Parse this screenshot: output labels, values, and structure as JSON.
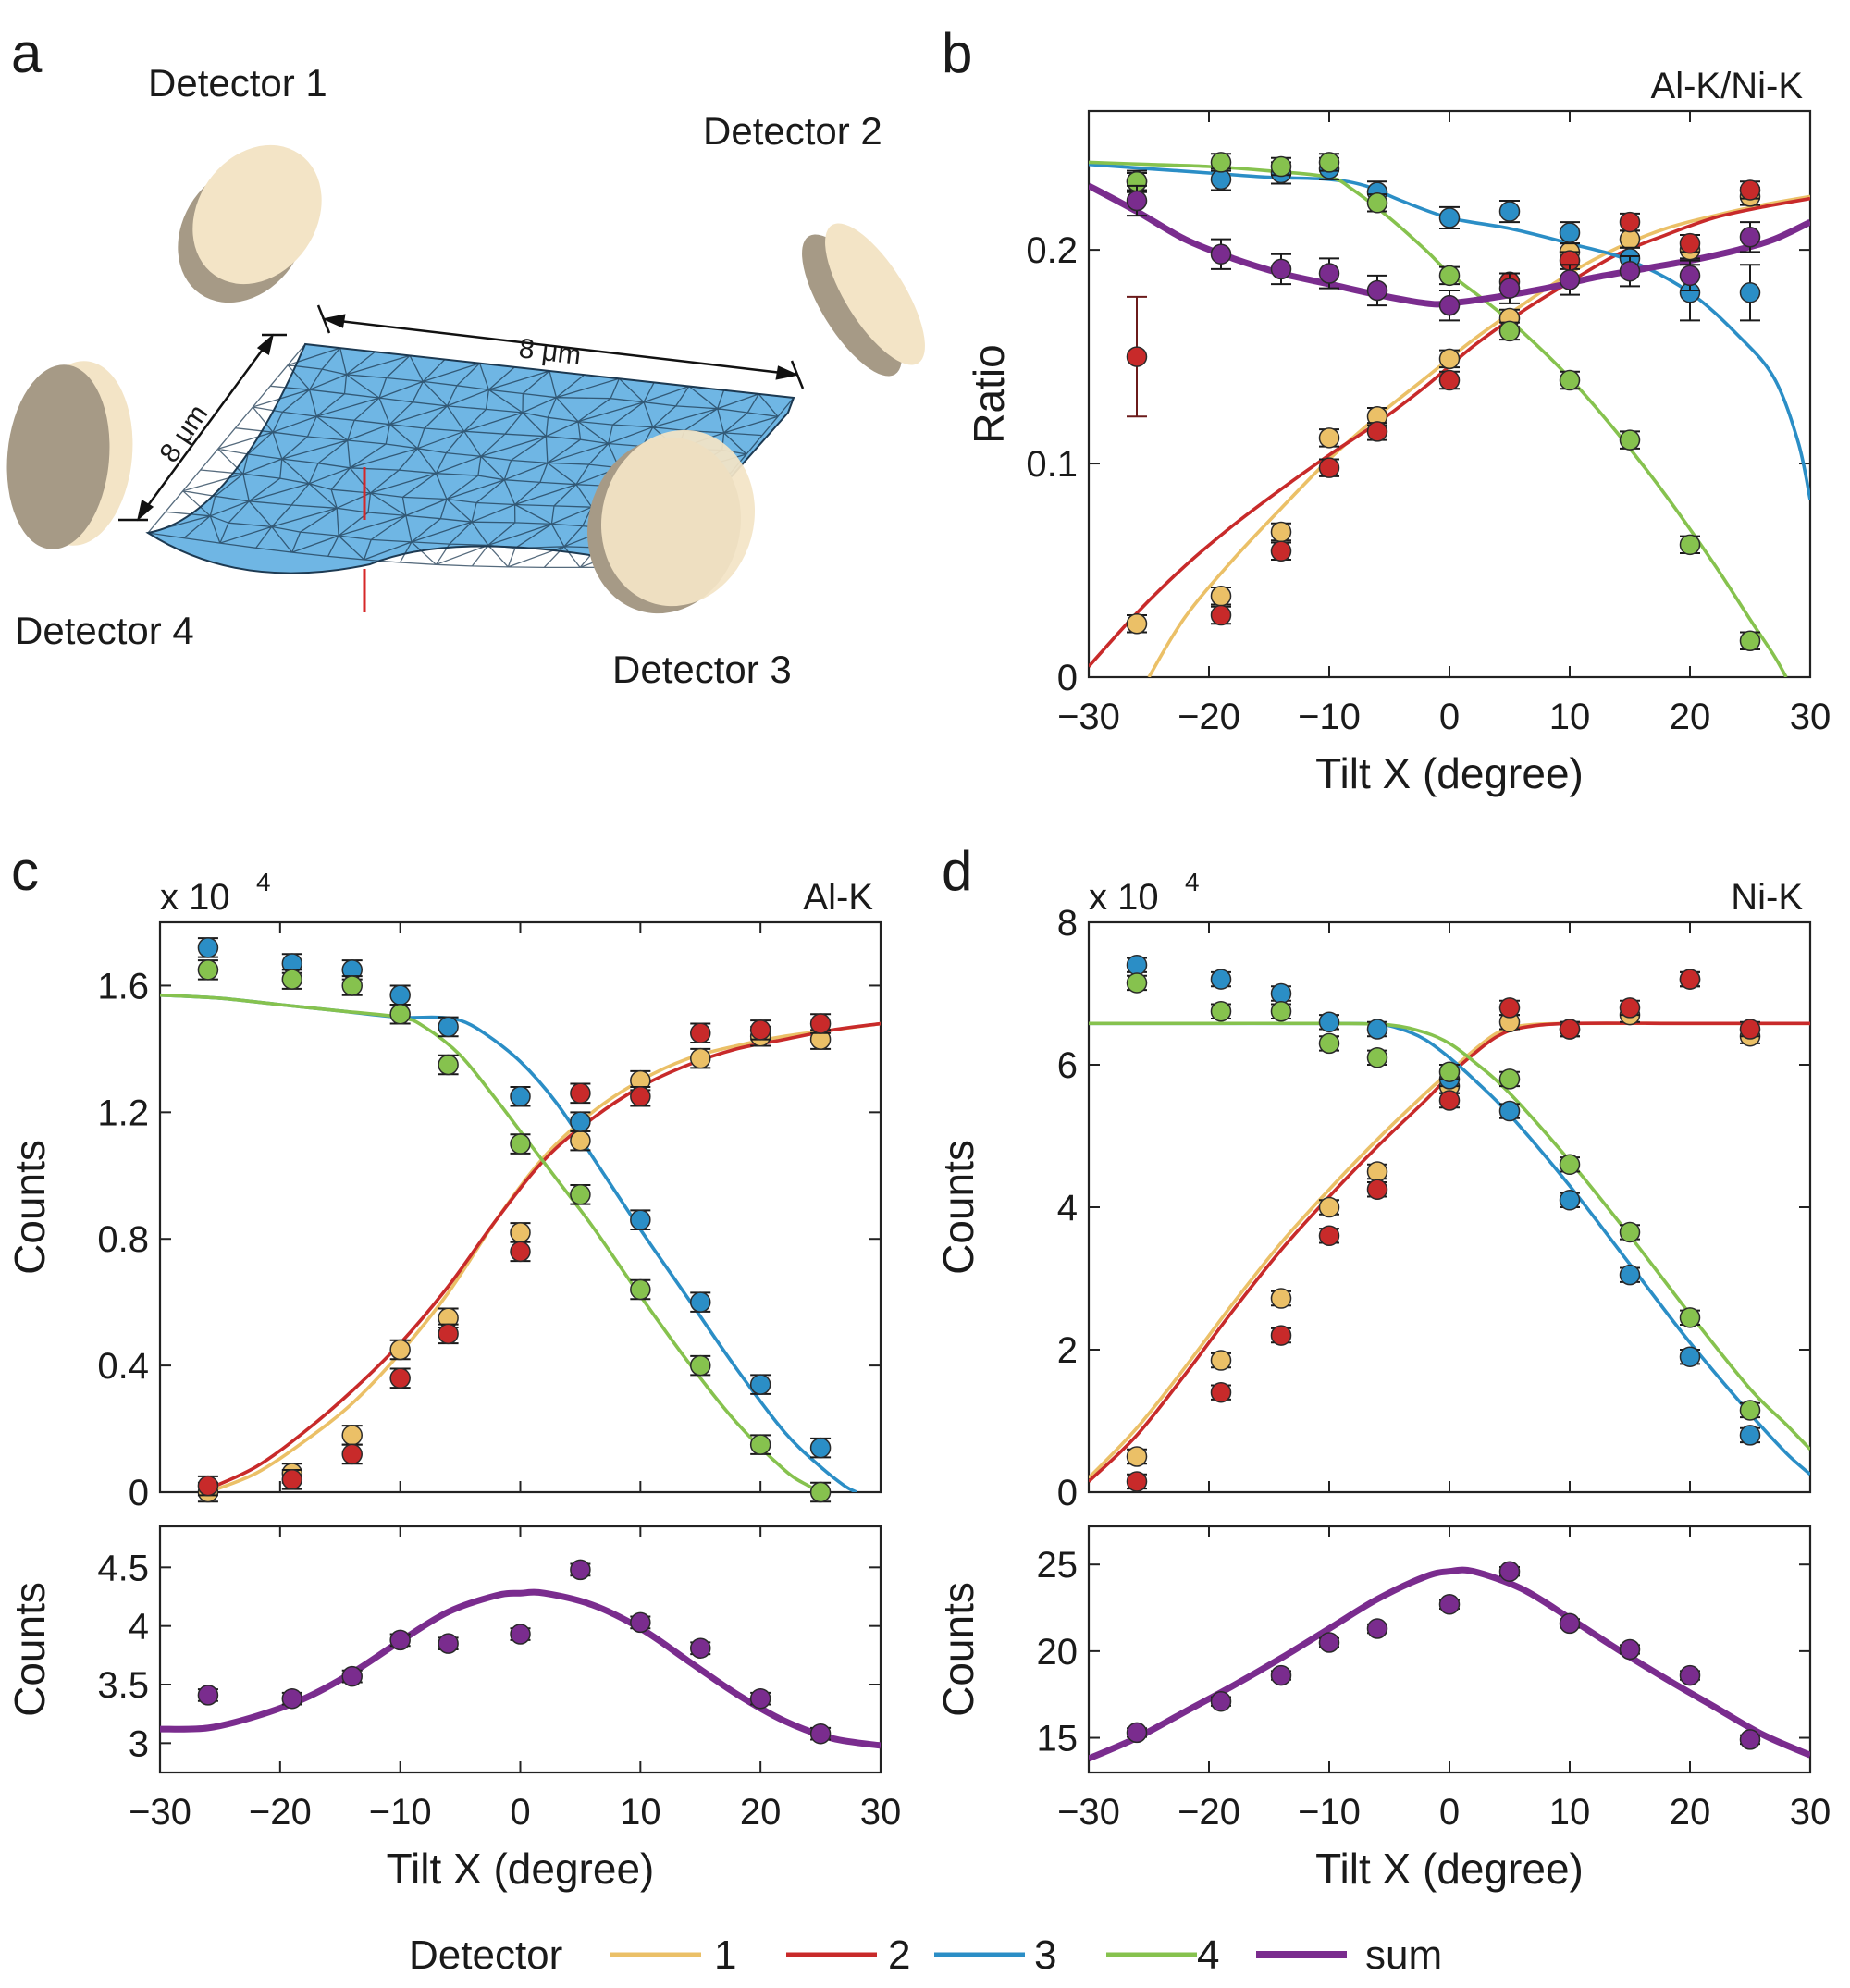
{
  "panel_a": {
    "letter": "a",
    "detector_labels": [
      "Detector 1",
      "Detector 2",
      "Detector 3",
      "Detector 4"
    ],
    "dimension_labels": [
      "8 μm",
      "8 μm"
    ],
    "colors": {
      "mesh": "#6FB6E4",
      "mesh_line": "#1d3a52",
      "disc_face": "#F3E4C6",
      "disc_side": "#A69A86",
      "marker": "#D62728"
    }
  },
  "series_colors": {
    "1": "#EBC067",
    "2": "#C82A2A",
    "3": "#2B8EC6",
    "4": "#86C24E",
    "sum": "#7A2C8E"
  },
  "legend": {
    "title": "Detector",
    "entries": [
      "1",
      "2",
      "3",
      "4",
      "sum"
    ]
  },
  "chart_data": [
    {
      "id": "b",
      "letter": "b",
      "type": "scatter",
      "title": "Al-K/Ni-K",
      "xlabel": "Tilt X (degree)",
      "ylabel": "Ratio",
      "xlim": [
        -30,
        30
      ],
      "ylim": [
        0,
        0.265
      ],
      "xticks": [
        -30,
        -20,
        -10,
        0,
        10,
        20,
        30
      ],
      "xtick_labels": [
        "−30",
        "−20",
        "−10",
        "0",
        "10",
        "20",
        "30"
      ],
      "yticks": [
        0,
        0.1,
        0.2
      ],
      "ytick_labels": [
        "0",
        "0.1",
        "0.2"
      ],
      "x": [
        -26,
        -19,
        -14,
        -10,
        -6,
        0,
        5,
        10,
        15,
        20,
        25
      ],
      "series": [
        {
          "name": "1",
          "values": [
            0.025,
            0.038,
            0.068,
            0.112,
            0.122,
            0.149,
            0.168,
            0.199,
            0.205,
            0.2,
            0.225
          ],
          "err": 0.004
        },
        {
          "name": "2",
          "values": [
            0.15,
            0.029,
            0.059,
            0.098,
            0.115,
            0.139,
            0.185,
            0.195,
            0.213,
            0.203,
            0.228
          ],
          "err": 0.004,
          "extra_err": {
            "index": 0,
            "value": 0.028
          }
        },
        {
          "name": "3",
          "values": [
            0.232,
            0.233,
            0.236,
            0.238,
            0.227,
            0.215,
            0.218,
            0.208,
            0.196,
            0.18,
            0.18
          ],
          "err": 0.005,
          "large_err_from": 9,
          "large_err": 0.013
        },
        {
          "name": "4",
          "values": [
            0.232,
            0.241,
            0.239,
            0.241,
            0.222,
            0.188,
            0.162,
            0.139,
            0.111,
            0.062,
            0.017
          ],
          "err": 0.004
        },
        {
          "name": "sum",
          "values": [
            0.223,
            0.198,
            0.191,
            0.189,
            0.181,
            0.174,
            0.182,
            0.186,
            0.19,
            0.188,
            0.206
          ],
          "err": 0.007
        }
      ],
      "curves": [
        {
          "name": "1",
          "x": [
            -25,
            -22,
            -18,
            -14,
            -10,
            -6,
            -2,
            2,
            6,
            10,
            14,
            18,
            22,
            26,
            30
          ],
          "y": [
            0,
            0.028,
            0.055,
            0.079,
            0.102,
            0.122,
            0.14,
            0.158,
            0.174,
            0.189,
            0.201,
            0.21,
            0.216,
            0.221,
            0.225
          ]
        },
        {
          "name": "2",
          "x": [
            -30,
            -26,
            -22,
            -18,
            -14,
            -10,
            -6,
            -2,
            2,
            6,
            10,
            14,
            18,
            22,
            26,
            30
          ],
          "y": [
            0.005,
            0.03,
            0.052,
            0.071,
            0.088,
            0.104,
            0.119,
            0.136,
            0.155,
            0.171,
            0.185,
            0.198,
            0.207,
            0.215,
            0.22,
            0.224
          ]
        },
        {
          "name": "3",
          "x": [
            -30,
            -25,
            -20,
            -15,
            -10,
            -7,
            -4,
            0,
            5,
            10,
            15,
            20,
            24,
            27,
            29,
            30
          ],
          "y": [
            0.24,
            0.238,
            0.236,
            0.234,
            0.233,
            0.23,
            0.223,
            0.215,
            0.21,
            0.203,
            0.195,
            0.18,
            0.16,
            0.14,
            0.11,
            0.083
          ]
        },
        {
          "name": "4",
          "x": [
            -30,
            -25,
            -20,
            -15,
            -10,
            -8,
            -5,
            -2,
            0,
            3,
            6,
            10,
            14,
            18,
            22,
            25,
            27,
            28
          ],
          "y": [
            0.241,
            0.24,
            0.239,
            0.237,
            0.234,
            0.228,
            0.215,
            0.2,
            0.189,
            0.176,
            0.162,
            0.14,
            0.114,
            0.085,
            0.053,
            0.027,
            0.01,
            0
          ]
        },
        {
          "name": "sum",
          "x": [
            -30,
            -26,
            -22,
            -18,
            -14,
            -10,
            -6,
            -2,
            0,
            4,
            8,
            12,
            16,
            20,
            24,
            27,
            30
          ],
          "y": [
            0.23,
            0.218,
            0.205,
            0.196,
            0.189,
            0.184,
            0.179,
            0.175,
            0.175,
            0.178,
            0.182,
            0.187,
            0.191,
            0.195,
            0.2,
            0.205,
            0.213
          ]
        }
      ]
    },
    {
      "id": "c",
      "letter": "c",
      "type": "scatter",
      "title": "Al-K",
      "multiplier": "x 10",
      "multiplier_exp": "4",
      "xlabel": "",
      "ylabel": "Counts",
      "xlim": [
        -30,
        30
      ],
      "ylim": [
        0,
        1.8
      ],
      "xticks": [
        -30,
        -20,
        -10,
        0,
        10,
        20,
        30
      ],
      "yticks": [
        0,
        0.4,
        0.8,
        1.2,
        1.6
      ],
      "ytick_labels": [
        "0",
        "0.4",
        "0.8",
        "1.2",
        "1.6"
      ],
      "x": [
        -26,
        -19,
        -14,
        -10,
        -6,
        0,
        5,
        10,
        15,
        20,
        25
      ],
      "series": [
        {
          "name": "1",
          "values": [
            0.0,
            0.06,
            0.18,
            0.45,
            0.55,
            0.82,
            1.11,
            1.3,
            1.37,
            1.44,
            1.43
          ],
          "err": 0.03
        },
        {
          "name": "2",
          "values": [
            0.02,
            0.04,
            0.12,
            0.36,
            0.5,
            0.76,
            1.26,
            1.25,
            1.45,
            1.46,
            1.48
          ],
          "err": 0.03
        },
        {
          "name": "3",
          "values": [
            1.72,
            1.67,
            1.65,
            1.57,
            1.47,
            1.25,
            1.17,
            0.86,
            0.6,
            0.34,
            0.14
          ],
          "err": 0.03
        },
        {
          "name": "4",
          "values": [
            1.65,
            1.62,
            1.6,
            1.51,
            1.35,
            1.1,
            0.94,
            0.64,
            0.4,
            0.15,
            0.0
          ],
          "err": 0.03
        }
      ],
      "curves": [
        {
          "name": "1",
          "x": [
            -26,
            -22,
            -18,
            -14,
            -10,
            -6,
            -2,
            2,
            6,
            10,
            14,
            18,
            22,
            26,
            30
          ],
          "y": [
            0.0,
            0.06,
            0.16,
            0.28,
            0.44,
            0.63,
            0.86,
            1.06,
            1.2,
            1.3,
            1.37,
            1.41,
            1.44,
            1.46,
            1.48
          ]
        },
        {
          "name": "2",
          "x": [
            -26,
            -22,
            -18,
            -14,
            -10,
            -6,
            -2,
            2,
            6,
            10,
            14,
            18,
            22,
            26,
            30
          ],
          "y": [
            0.01,
            0.08,
            0.19,
            0.32,
            0.47,
            0.65,
            0.86,
            1.05,
            1.18,
            1.28,
            1.35,
            1.4,
            1.43,
            1.46,
            1.48
          ]
        },
        {
          "name": "3",
          "x": [
            -30,
            -25,
            -20,
            -15,
            -10,
            -7,
            -5,
            -3,
            0,
            3,
            6,
            10,
            14,
            18,
            22,
            25,
            27,
            28
          ],
          "y": [
            1.57,
            1.56,
            1.54,
            1.52,
            1.5,
            1.5,
            1.49,
            1.45,
            1.36,
            1.23,
            1.06,
            0.83,
            0.61,
            0.39,
            0.19,
            0.08,
            0.02,
            0
          ]
        },
        {
          "name": "4",
          "x": [
            -30,
            -25,
            -20,
            -15,
            -10,
            -8,
            -5,
            -2,
            0,
            3,
            6,
            10,
            14,
            18,
            22,
            24,
            25
          ],
          "y": [
            1.57,
            1.56,
            1.54,
            1.52,
            1.5,
            1.47,
            1.38,
            1.24,
            1.14,
            0.99,
            0.84,
            0.62,
            0.41,
            0.22,
            0.07,
            0.02,
            0
          ]
        }
      ]
    },
    {
      "id": "c_sum",
      "type": "scatter",
      "xlabel": "Tilt X (degree)",
      "ylabel": "Counts",
      "xlim": [
        -30,
        30
      ],
      "ylim": [
        2.75,
        4.85
      ],
      "xticks": [
        -30,
        -20,
        -10,
        0,
        10,
        20,
        30
      ],
      "xtick_labels": [
        "−30",
        "−20",
        "−10",
        "0",
        "10",
        "20",
        "30"
      ],
      "yticks": [
        3,
        3.5,
        4,
        4.5
      ],
      "ytick_labels": [
        "3",
        "3.5",
        "4",
        "4.5"
      ],
      "x": [
        -26,
        -19,
        -14,
        -10,
        -6,
        0,
        5,
        10,
        15,
        20,
        25
      ],
      "series": [
        {
          "name": "sum",
          "values": [
            3.41,
            3.38,
            3.57,
            3.88,
            3.85,
            3.93,
            4.48,
            4.03,
            3.81,
            3.38,
            3.08
          ],
          "err": 0.05
        }
      ],
      "curves": [
        {
          "name": "sum",
          "x": [
            -30,
            -26,
            -22,
            -18,
            -14,
            -10,
            -6,
            -2,
            0,
            2,
            6,
            10,
            14,
            18,
            22,
            26,
            30
          ],
          "y": [
            3.12,
            3.13,
            3.23,
            3.38,
            3.6,
            3.87,
            4.12,
            4.26,
            4.28,
            4.28,
            4.18,
            3.98,
            3.7,
            3.42,
            3.19,
            3.04,
            2.98
          ]
        }
      ]
    },
    {
      "id": "d",
      "letter": "d",
      "type": "scatter",
      "title": "Ni-K",
      "multiplier": "x 10",
      "multiplier_exp": "4",
      "xlabel": "",
      "ylabel": "Counts",
      "xlim": [
        -30,
        30
      ],
      "ylim": [
        0,
        8
      ],
      "xticks": [
        -30,
        -20,
        -10,
        0,
        10,
        20,
        30
      ],
      "yticks": [
        0,
        2,
        4,
        6,
        8
      ],
      "ytick_labels": [
        "0",
        "2",
        "4",
        "6",
        "8"
      ],
      "x": [
        -26,
        -19,
        -14,
        -10,
        -6,
        0,
        5,
        10,
        15,
        20,
        25
      ],
      "series": [
        {
          "name": "1",
          "values": [
            0.5,
            1.85,
            2.72,
            4.0,
            4.5,
            5.7,
            6.6,
            6.5,
            6.7,
            7.2,
            6.4
          ],
          "err": 0.1
        },
        {
          "name": "2",
          "values": [
            0.15,
            1.4,
            2.2,
            3.6,
            4.25,
            5.5,
            6.8,
            6.5,
            6.8,
            7.2,
            6.5
          ],
          "err": 0.1
        },
        {
          "name": "3",
          "values": [
            7.4,
            7.2,
            7.0,
            6.6,
            6.5,
            5.8,
            5.35,
            4.1,
            3.05,
            1.9,
            0.8
          ],
          "err": 0.1
        },
        {
          "name": "4",
          "values": [
            7.15,
            6.75,
            6.75,
            6.3,
            6.1,
            5.9,
            5.8,
            4.6,
            3.65,
            2.45,
            1.15
          ],
          "err": 0.1
        }
      ],
      "curves": [
        {
          "name": "1",
          "x": [
            -30,
            -26,
            -22,
            -18,
            -14,
            -10,
            -6,
            -2,
            0,
            2,
            4,
            6,
            10,
            20,
            30
          ],
          "y": [
            0.2,
            0.9,
            1.75,
            2.65,
            3.5,
            4.25,
            4.95,
            5.6,
            5.9,
            6.2,
            6.45,
            6.55,
            6.58,
            6.58,
            6.58
          ]
        },
        {
          "name": "2",
          "x": [
            -30,
            -26,
            -22,
            -18,
            -14,
            -10,
            -6,
            -2,
            0,
            2,
            4,
            6,
            10,
            20,
            30
          ],
          "y": [
            0.15,
            0.8,
            1.65,
            2.55,
            3.4,
            4.15,
            4.85,
            5.5,
            5.85,
            6.15,
            6.4,
            6.52,
            6.58,
            6.58,
            6.58
          ]
        },
        {
          "name": "3",
          "x": [
            -30,
            -20,
            -10,
            -6,
            -4,
            -2,
            0,
            2,
            5,
            10,
            15,
            20,
            25,
            28,
            30
          ],
          "y": [
            6.58,
            6.58,
            6.58,
            6.57,
            6.5,
            6.35,
            6.1,
            5.8,
            5.3,
            4.3,
            3.2,
            2.1,
            1.1,
            0.55,
            0.25
          ]
        },
        {
          "name": "4",
          "x": [
            -30,
            -20,
            -10,
            -5,
            -2,
            0,
            2,
            5,
            10,
            15,
            20,
            25,
            28,
            30
          ],
          "y": [
            6.58,
            6.58,
            6.58,
            6.56,
            6.45,
            6.3,
            6.05,
            5.6,
            4.65,
            3.6,
            2.5,
            1.45,
            0.95,
            0.6
          ]
        }
      ]
    },
    {
      "id": "d_sum",
      "type": "scatter",
      "xlabel": "Tilt X (degree)",
      "ylabel": "Counts",
      "xlim": [
        -30,
        30
      ],
      "ylim": [
        13,
        27.2
      ],
      "xticks": [
        -30,
        -20,
        -10,
        0,
        10,
        20,
        30
      ],
      "xtick_labels": [
        "−30",
        "−20",
        "−10",
        "0",
        "10",
        "20",
        "30"
      ],
      "yticks": [
        15,
        20,
        25
      ],
      "ytick_labels": [
        "15",
        "20",
        "25"
      ],
      "x": [
        -26,
        -19,
        -14,
        -10,
        -6,
        0,
        5,
        10,
        15,
        20,
        25
      ],
      "series": [
        {
          "name": "sum",
          "values": [
            15.3,
            17.1,
            18.6,
            20.5,
            21.3,
            22.7,
            24.6,
            21.6,
            20.1,
            18.6,
            14.9
          ],
          "err": 0.25
        }
      ],
      "curves": [
        {
          "name": "sum",
          "x": [
            -30,
            -26,
            -22,
            -18,
            -14,
            -10,
            -6,
            -2,
            0,
            2,
            6,
            10,
            14,
            18,
            22,
            26,
            30
          ],
          "y": [
            13.8,
            15.0,
            16.5,
            18.0,
            19.6,
            21.3,
            23.0,
            24.3,
            24.6,
            24.6,
            23.6,
            21.9,
            20.1,
            18.4,
            16.8,
            15.2,
            14.0
          ]
        }
      ]
    }
  ]
}
